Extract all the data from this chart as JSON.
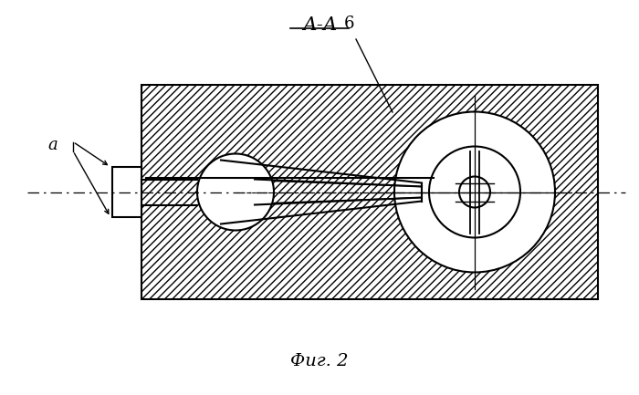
{
  "title": "А-А",
  "fig_label": "Фиг. 2",
  "label_6": "6",
  "label_a": "а",
  "bg_color": "#ffffff",
  "line_color": "#000000"
}
